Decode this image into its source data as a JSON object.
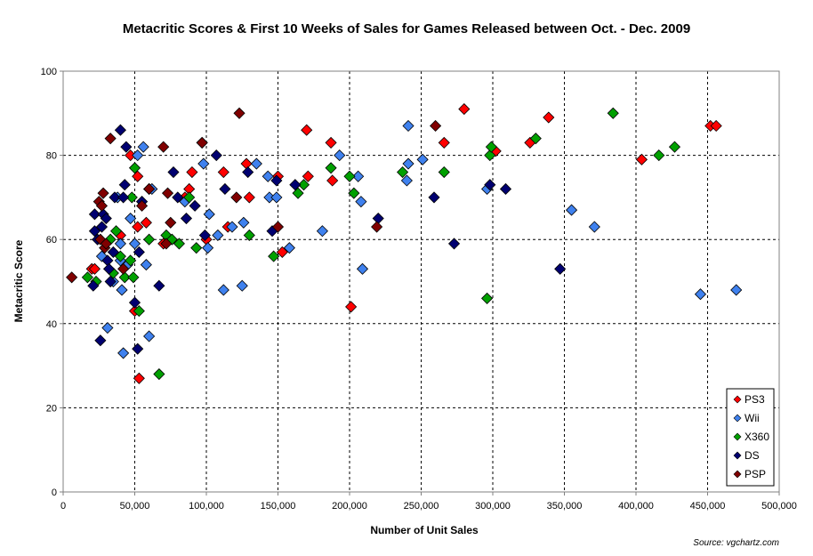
{
  "chart_data": {
    "type": "scatter",
    "title": "Metacritic Scores & First 10 Weeks of Sales for Games Released between Oct. - Dec. 2009",
    "xlabel": "Number of Unit Sales",
    "ylabel": "Metacritic Score",
    "source": "Source: vgchartz.com",
    "xlim": [
      0,
      500000
    ],
    "ylim": [
      0,
      100
    ],
    "x_ticks": [
      0,
      50000,
      100000,
      150000,
      200000,
      250000,
      300000,
      350000,
      400000,
      450000,
      500000
    ],
    "x_tick_labels": [
      "0",
      "50,000",
      "100,000",
      "150,000",
      "200,000",
      "250,000",
      "300,000",
      "350,000",
      "400,000",
      "450,000",
      "500,000"
    ],
    "y_ticks": [
      0,
      20,
      40,
      60,
      80,
      100
    ],
    "y_tick_labels": [
      "0",
      "20",
      "40",
      "60",
      "80",
      "100"
    ],
    "grid": true,
    "legend_position": "bottom-right",
    "series": [
      {
        "name": "PS3",
        "color": "#ff0000",
        "points": [
          [
            20000,
            53
          ],
          [
            22000,
            53
          ],
          [
            40000,
            61
          ],
          [
            47000,
            80
          ],
          [
            50000,
            43
          ],
          [
            52000,
            75
          ],
          [
            52000,
            63
          ],
          [
            53000,
            27
          ],
          [
            58000,
            64
          ],
          [
            60000,
            72
          ],
          [
            70000,
            59
          ],
          [
            85000,
            70
          ],
          [
            88000,
            72
          ],
          [
            90000,
            76
          ],
          [
            97000,
            83
          ],
          [
            100000,
            60
          ],
          [
            112000,
            76
          ],
          [
            115000,
            63
          ],
          [
            128000,
            78
          ],
          [
            130000,
            70
          ],
          [
            150000,
            75
          ],
          [
            153000,
            57
          ],
          [
            170000,
            86
          ],
          [
            171000,
            75
          ],
          [
            187000,
            83
          ],
          [
            188000,
            74
          ],
          [
            201000,
            44
          ],
          [
            266000,
            83
          ],
          [
            280000,
            91
          ],
          [
            302000,
            81
          ],
          [
            326000,
            83
          ],
          [
            339000,
            89
          ],
          [
            404000,
            79
          ],
          [
            452000,
            87
          ],
          [
            456000,
            87
          ]
        ]
      },
      {
        "name": "Wii",
        "color": "#3f81ee",
        "points": [
          [
            27000,
            56
          ],
          [
            31000,
            39
          ],
          [
            35000,
            50
          ],
          [
            38000,
            70
          ],
          [
            40000,
            55
          ],
          [
            40000,
            59
          ],
          [
            41000,
            48
          ],
          [
            42000,
            33
          ],
          [
            45000,
            54
          ],
          [
            47000,
            65
          ],
          [
            50000,
            59
          ],
          [
            52000,
            80
          ],
          [
            56000,
            82
          ],
          [
            58000,
            54
          ],
          [
            60000,
            37
          ],
          [
            62000,
            72
          ],
          [
            85000,
            69
          ],
          [
            98000,
            78
          ],
          [
            101000,
            58
          ],
          [
            102000,
            66
          ],
          [
            108000,
            61
          ],
          [
            112000,
            48
          ],
          [
            118000,
            63
          ],
          [
            125000,
            49
          ],
          [
            126000,
            64
          ],
          [
            135000,
            78
          ],
          [
            143000,
            75
          ],
          [
            144000,
            70
          ],
          [
            149000,
            70
          ],
          [
            158000,
            58
          ],
          [
            181000,
            62
          ],
          [
            193000,
            80
          ],
          [
            206000,
            75
          ],
          [
            208000,
            69
          ],
          [
            209000,
            53
          ],
          [
            240000,
            74
          ],
          [
            241000,
            78
          ],
          [
            241000,
            87
          ],
          [
            251000,
            79
          ],
          [
            296000,
            72
          ],
          [
            355000,
            67
          ],
          [
            371000,
            63
          ],
          [
            445000,
            47
          ],
          [
            470000,
            48
          ]
        ]
      },
      {
        "name": "X360",
        "color": "#00a000",
        "points": [
          [
            17000,
            51
          ],
          [
            23000,
            50
          ],
          [
            33000,
            60
          ],
          [
            35000,
            52
          ],
          [
            37000,
            62
          ],
          [
            40000,
            56
          ],
          [
            43000,
            51
          ],
          [
            47000,
            55
          ],
          [
            48000,
            70
          ],
          [
            49000,
            51
          ],
          [
            50000,
            77
          ],
          [
            53000,
            43
          ],
          [
            55000,
            69
          ],
          [
            60000,
            60
          ],
          [
            67000,
            28
          ],
          [
            72000,
            61
          ],
          [
            76000,
            60
          ],
          [
            81000,
            59
          ],
          [
            88000,
            70
          ],
          [
            93000,
            58
          ],
          [
            130000,
            61
          ],
          [
            147000,
            56
          ],
          [
            164000,
            71
          ],
          [
            168000,
            73
          ],
          [
            187000,
            77
          ],
          [
            200000,
            75
          ],
          [
            203000,
            71
          ],
          [
            237000,
            76
          ],
          [
            266000,
            76
          ],
          [
            296000,
            46
          ],
          [
            298000,
            80
          ],
          [
            299000,
            82
          ],
          [
            330000,
            84
          ],
          [
            384000,
            90
          ],
          [
            416000,
            80
          ],
          [
            427000,
            82
          ]
        ]
      },
      {
        "name": "DS",
        "color": "#000070",
        "points": [
          [
            21000,
            49
          ],
          [
            22000,
            62
          ],
          [
            22000,
            66
          ],
          [
            24000,
            60
          ],
          [
            26000,
            36
          ],
          [
            27000,
            63
          ],
          [
            28000,
            66
          ],
          [
            30000,
            65
          ],
          [
            31000,
            55
          ],
          [
            32000,
            53
          ],
          [
            33000,
            50
          ],
          [
            35000,
            57
          ],
          [
            36000,
            70
          ],
          [
            40000,
            86
          ],
          [
            42000,
            70
          ],
          [
            43000,
            73
          ],
          [
            44000,
            82
          ],
          [
            50000,
            45
          ],
          [
            52000,
            34
          ],
          [
            53000,
            57
          ],
          [
            55000,
            69
          ],
          [
            67000,
            49
          ],
          [
            77000,
            76
          ],
          [
            80000,
            70
          ],
          [
            86000,
            65
          ],
          [
            92000,
            68
          ],
          [
            99000,
            61
          ],
          [
            107000,
            80
          ],
          [
            113000,
            72
          ],
          [
            129000,
            76
          ],
          [
            146000,
            62
          ],
          [
            149000,
            74
          ],
          [
            162000,
            73
          ],
          [
            220000,
            65
          ],
          [
            259000,
            70
          ],
          [
            273000,
            59
          ],
          [
            298000,
            73
          ],
          [
            309000,
            72
          ],
          [
            347000,
            53
          ]
        ]
      },
      {
        "name": "PSP",
        "color": "#800000",
        "points": [
          [
            6000,
            51
          ],
          [
            25000,
            69
          ],
          [
            26000,
            60
          ],
          [
            27000,
            68
          ],
          [
            28000,
            71
          ],
          [
            29000,
            58
          ],
          [
            30000,
            59
          ],
          [
            33000,
            84
          ],
          [
            42000,
            53
          ],
          [
            55000,
            68
          ],
          [
            60000,
            72
          ],
          [
            70000,
            82
          ],
          [
            72000,
            59
          ],
          [
            73000,
            71
          ],
          [
            75000,
            64
          ],
          [
            97000,
            83
          ],
          [
            121000,
            70
          ],
          [
            123000,
            90
          ],
          [
            150000,
            63
          ],
          [
            219000,
            63
          ],
          [
            260000,
            87
          ]
        ]
      }
    ]
  }
}
